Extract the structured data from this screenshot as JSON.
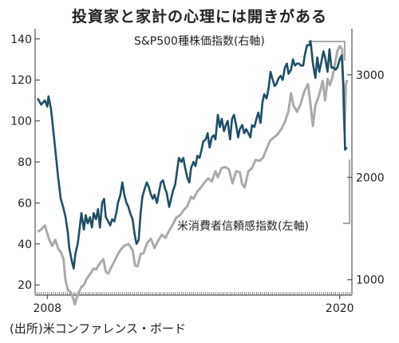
{
  "title": "投資家と家計の心理には開きがある",
  "source": "(出所)米コンファレンス・ボード",
  "chart_data": {
    "type": "line",
    "x_ticks": [
      {
        "label": "2008",
        "value": 2008
      },
      {
        "label": "2020",
        "value": 2020
      }
    ],
    "xlim": [
      2007.5,
      2020.5
    ],
    "left_axis": {
      "ylim": [
        15,
        145
      ],
      "ticks": [
        20,
        40,
        60,
        80,
        100,
        120,
        140
      ]
    },
    "right_axis": {
      "ylim": [
        850,
        3450
      ],
      "ticks": [
        1000,
        2000,
        3000
      ]
    },
    "series": [
      {
        "name": "米消費者信頼感指数(左軸)",
        "axis": "left",
        "color": "#1f4e66",
        "label_anchor": [
          2014.8,
          45
        ],
        "points": [
          [
            2007.6,
            111
          ],
          [
            2007.75,
            108
          ],
          [
            2007.9,
            110
          ],
          [
            2008.0,
            107
          ],
          [
            2008.05,
            112
          ],
          [
            2008.15,
            106
          ],
          [
            2008.25,
            95
          ],
          [
            2008.33,
            86
          ],
          [
            2008.45,
            72
          ],
          [
            2008.55,
            62
          ],
          [
            2008.65,
            58
          ],
          [
            2008.75,
            53
          ],
          [
            2008.85,
            45
          ],
          [
            2008.9,
            38
          ],
          [
            2009.0,
            32
          ],
          [
            2009.08,
            28
          ],
          [
            2009.15,
            35
          ],
          [
            2009.25,
            40
          ],
          [
            2009.33,
            48
          ],
          [
            2009.4,
            55
          ],
          [
            2009.5,
            47
          ],
          [
            2009.58,
            54
          ],
          [
            2009.66,
            50
          ],
          [
            2009.75,
            53
          ],
          [
            2009.83,
            48
          ],
          [
            2009.9,
            55
          ],
          [
            2010.0,
            52
          ],
          [
            2010.08,
            57
          ],
          [
            2010.16,
            48
          ],
          [
            2010.25,
            60
          ],
          [
            2010.33,
            62
          ],
          [
            2010.4,
            53
          ],
          [
            2010.5,
            51
          ],
          [
            2010.58,
            49
          ],
          [
            2010.66,
            52
          ],
          [
            2010.75,
            51
          ],
          [
            2010.83,
            55
          ],
          [
            2010.9,
            60
          ],
          [
            2011.0,
            64
          ],
          [
            2011.08,
            70
          ],
          [
            2011.16,
            64
          ],
          [
            2011.25,
            60
          ],
          [
            2011.33,
            58
          ],
          [
            2011.4,
            55
          ],
          [
            2011.5,
            52
          ],
          [
            2011.58,
            45
          ],
          [
            2011.66,
            40
          ],
          [
            2011.75,
            42
          ],
          [
            2011.83,
            55
          ],
          [
            2011.9,
            63
          ],
          [
            2012.0,
            67
          ],
          [
            2012.08,
            70
          ],
          [
            2012.16,
            68
          ],
          [
            2012.25,
            64
          ],
          [
            2012.33,
            62
          ],
          [
            2012.4,
            64
          ],
          [
            2012.5,
            60
          ],
          [
            2012.58,
            65
          ],
          [
            2012.66,
            70
          ],
          [
            2012.75,
            71
          ],
          [
            2012.83,
            67
          ],
          [
            2012.9,
            65
          ],
          [
            2013.0,
            58
          ],
          [
            2013.08,
            62
          ],
          [
            2013.16,
            66
          ],
          [
            2013.25,
            69
          ],
          [
            2013.33,
            76
          ],
          [
            2013.4,
            82
          ],
          [
            2013.5,
            80
          ],
          [
            2013.58,
            82
          ],
          [
            2013.66,
            77
          ],
          [
            2013.75,
            72
          ],
          [
            2013.83,
            70
          ],
          [
            2013.9,
            77
          ],
          [
            2014.0,
            80
          ],
          [
            2014.08,
            78
          ],
          [
            2014.16,
            83
          ],
          [
            2014.25,
            82
          ],
          [
            2014.33,
            86
          ],
          [
            2014.4,
            90
          ],
          [
            2014.5,
            91
          ],
          [
            2014.58,
            94
          ],
          [
            2014.66,
            87
          ],
          [
            2014.75,
            92
          ],
          [
            2014.83,
            93
          ],
          [
            2014.9,
            91
          ],
          [
            2015.0,
            103
          ],
          [
            2015.08,
            97
          ],
          [
            2015.16,
            101
          ],
          [
            2015.25,
            95
          ],
          [
            2015.33,
            98
          ],
          [
            2015.4,
            100
          ],
          [
            2015.5,
            91
          ],
          [
            2015.58,
            101
          ],
          [
            2015.66,
            103
          ],
          [
            2015.75,
            98
          ],
          [
            2015.83,
            92
          ],
          [
            2015.9,
            96
          ],
          [
            2016.0,
            98
          ],
          [
            2016.08,
            94
          ],
          [
            2016.16,
            96
          ],
          [
            2016.25,
            94
          ],
          [
            2016.33,
            92
          ],
          [
            2016.4,
            98
          ],
          [
            2016.5,
            97
          ],
          [
            2016.58,
            101
          ],
          [
            2016.66,
            104
          ],
          [
            2016.75,
            99
          ],
          [
            2016.83,
            109
          ],
          [
            2016.9,
            113
          ],
          [
            2017.0,
            111
          ],
          [
            2017.08,
            116
          ],
          [
            2017.16,
            124
          ],
          [
            2017.25,
            120
          ],
          [
            2017.33,
            117
          ],
          [
            2017.4,
            118
          ],
          [
            2017.5,
            121
          ],
          [
            2017.58,
            122
          ],
          [
            2017.66,
            120
          ],
          [
            2017.75,
            126
          ],
          [
            2017.83,
            128
          ],
          [
            2017.9,
            123
          ],
          [
            2018.0,
            125
          ],
          [
            2018.08,
            130
          ],
          [
            2018.16,
            127
          ],
          [
            2018.25,
            128
          ],
          [
            2018.33,
            128
          ],
          [
            2018.4,
            127
          ],
          [
            2018.5,
            127
          ],
          [
            2018.58,
            133
          ],
          [
            2018.66,
            137
          ],
          [
            2018.75,
            137
          ],
          [
            2018.8,
            139
          ],
          [
            2018.83,
            136
          ],
          [
            2018.9,
            128
          ],
          [
            2019.0,
            121
          ],
          [
            2019.08,
            131
          ],
          [
            2019.16,
            124
          ],
          [
            2019.25,
            129
          ],
          [
            2019.33,
            134
          ],
          [
            2019.4,
            131
          ],
          [
            2019.5,
            124
          ],
          [
            2019.58,
            135
          ],
          [
            2019.66,
            126
          ],
          [
            2019.75,
            126
          ],
          [
            2019.83,
            125
          ],
          [
            2019.9,
            126
          ],
          [
            2020.0,
            130
          ],
          [
            2020.08,
            132
          ],
          [
            2020.15,
            118
          ],
          [
            2020.22,
            86
          ],
          [
            2020.3,
            87
          ]
        ]
      },
      {
        "name": "S&P500種株価指数(右軸)",
        "axis": "right",
        "color": "#a9a9ae",
        "label_anchor": [
          2020.05,
          3200
        ],
        "points": [
          [
            2007.6,
            1470
          ],
          [
            2007.75,
            1490
          ],
          [
            2007.9,
            1530
          ],
          [
            2008.0,
            1450
          ],
          [
            2008.1,
            1380
          ],
          [
            2008.2,
            1330
          ],
          [
            2008.33,
            1390
          ],
          [
            2008.45,
            1300
          ],
          [
            2008.55,
            1270
          ],
          [
            2008.66,
            1210
          ],
          [
            2008.75,
            990
          ],
          [
            2008.85,
            900
          ],
          [
            2008.95,
            880
          ],
          [
            2009.05,
            830
          ],
          [
            2009.13,
            760
          ],
          [
            2009.2,
            820
          ],
          [
            2009.3,
            880
          ],
          [
            2009.4,
            930
          ],
          [
            2009.5,
            950
          ],
          [
            2009.6,
            1000
          ],
          [
            2009.7,
            1040
          ],
          [
            2009.8,
            1070
          ],
          [
            2009.9,
            1110
          ],
          [
            2010.0,
            1100
          ],
          [
            2010.15,
            1160
          ],
          [
            2010.3,
            1200
          ],
          [
            2010.4,
            1080
          ],
          [
            2010.5,
            1060
          ],
          [
            2010.6,
            1110
          ],
          [
            2010.75,
            1180
          ],
          [
            2010.9,
            1250
          ],
          [
            2011.0,
            1290
          ],
          [
            2011.15,
            1330
          ],
          [
            2011.33,
            1350
          ],
          [
            2011.5,
            1290
          ],
          [
            2011.6,
            1140
          ],
          [
            2011.7,
            1130
          ],
          [
            2011.83,
            1250
          ],
          [
            2011.95,
            1260
          ],
          [
            2012.1,
            1360
          ],
          [
            2012.25,
            1400
          ],
          [
            2012.4,
            1310
          ],
          [
            2012.55,
            1380
          ],
          [
            2012.7,
            1440
          ],
          [
            2012.85,
            1410
          ],
          [
            2013.0,
            1480
          ],
          [
            2013.15,
            1540
          ],
          [
            2013.3,
            1610
          ],
          [
            2013.45,
            1630
          ],
          [
            2013.6,
            1680
          ],
          [
            2013.75,
            1720
          ],
          [
            2013.9,
            1810
          ],
          [
            2014.0,
            1790
          ],
          [
            2014.15,
            1860
          ],
          [
            2014.3,
            1900
          ],
          [
            2014.45,
            1950
          ],
          [
            2014.6,
            1990
          ],
          [
            2014.75,
            1960
          ],
          [
            2014.9,
            2060
          ],
          [
            2015.0,
            2000
          ],
          [
            2015.15,
            2090
          ],
          [
            2015.3,
            2100
          ],
          [
            2015.45,
            2080
          ],
          [
            2015.6,
            1940
          ],
          [
            2015.75,
            2060
          ],
          [
            2015.9,
            2050
          ],
          [
            2016.0,
            1930
          ],
          [
            2016.1,
            1900
          ],
          [
            2016.25,
            2060
          ],
          [
            2016.4,
            2090
          ],
          [
            2016.55,
            2170
          ],
          [
            2016.7,
            2160
          ],
          [
            2016.85,
            2190
          ],
          [
            2017.0,
            2280
          ],
          [
            2017.15,
            2360
          ],
          [
            2017.3,
            2390
          ],
          [
            2017.45,
            2420
          ],
          [
            2017.6,
            2470
          ],
          [
            2017.75,
            2540
          ],
          [
            2017.9,
            2650
          ],
          [
            2018.0,
            2820
          ],
          [
            2018.1,
            2700
          ],
          [
            2018.25,
            2640
          ],
          [
            2018.4,
            2720
          ],
          [
            2018.55,
            2840
          ],
          [
            2018.7,
            2910
          ],
          [
            2018.8,
            2710
          ],
          [
            2018.9,
            2500
          ],
          [
            2019.0,
            2700
          ],
          [
            2019.15,
            2800
          ],
          [
            2019.3,
            2940
          ],
          [
            2019.4,
            2750
          ],
          [
            2019.5,
            2960
          ],
          [
            2019.6,
            2900
          ],
          [
            2019.7,
            2980
          ],
          [
            2019.8,
            3100
          ],
          [
            2019.9,
            3230
          ],
          [
            2020.0,
            3280
          ],
          [
            2020.1,
            3250
          ],
          [
            2020.15,
            2750
          ],
          [
            2020.2,
            2450
          ],
          [
            2020.25,
            2900
          ],
          [
            2020.3,
            2950
          ]
        ]
      }
    ]
  }
}
